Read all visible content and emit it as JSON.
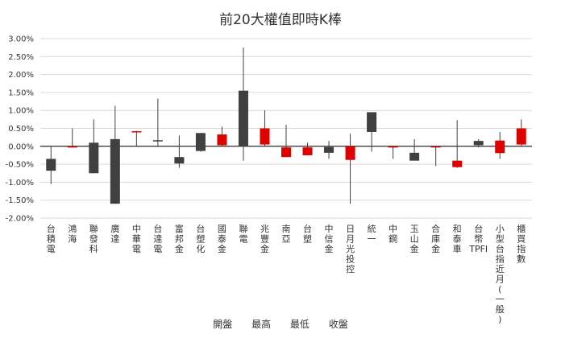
{
  "chart_data": {
    "type": "candlestick",
    "title": "前20大權值即時K棒",
    "ylim": [
      -0.02,
      0.03
    ],
    "yticks": [
      0.03,
      0.025,
      0.02,
      0.015,
      0.01,
      0.005,
      0.0,
      -0.005,
      -0.01,
      -0.015,
      -0.02
    ],
    "ytick_labels": [
      "3.00%",
      "2.50%",
      "2.00%",
      "1.50%",
      "1.00%",
      "0.50%",
      "0.00%",
      "-0.50%",
      "-1.00%",
      "-1.50%",
      "-2.00%"
    ],
    "legend": [
      "開盤",
      "最高",
      "最低",
      "收盤"
    ],
    "categories": [
      "台積電",
      "鴻海",
      "聯發科",
      "廣達",
      "中華電",
      "台達電",
      "富邦金",
      "台塑化",
      "國泰金",
      "聯電",
      "兆豐金",
      "南亞",
      "台塑",
      "中信金",
      "日月光投控",
      "統一",
      "中鋼",
      "玉山金",
      "合庫金",
      "和泰車",
      "台幣TPFI",
      "小型台指近月(一般)",
      "櫃買指數"
    ],
    "series": [
      {
        "name": "開盤",
        "values": [
          -0.0035,
          -0.0003,
          0.001,
          0.002,
          0.004,
          0.0017,
          -0.003,
          0.0037,
          0.0003,
          0.0155,
          0.0005,
          -0.003,
          -0.0025,
          -0.0002,
          -0.0038,
          0.0095,
          -0.0003,
          -0.0018,
          -0.0003,
          -0.0058,
          0.0015,
          -0.0019,
          0.0005
        ]
      },
      {
        "name": "最高",
        "values": [
          0.0,
          0.005,
          0.0075,
          0.0113,
          0.0043,
          0.0133,
          0.003,
          0.0037,
          0.0055,
          0.0275,
          0.01,
          0.006,
          0.001,
          0.0015,
          0.0035,
          0.0095,
          0.0,
          0.002,
          0.0,
          0.0073,
          0.002,
          0.004,
          0.0075
        ]
      },
      {
        "name": "最低",
        "values": [
          -0.0105,
          -0.0003,
          -0.0075,
          -0.016,
          0.0,
          0.0,
          -0.006,
          -0.0015,
          0.0,
          -0.004,
          0.0,
          -0.003,
          -0.0025,
          -0.0035,
          -0.016,
          -0.0015,
          -0.0035,
          -0.0038,
          -0.0055,
          -0.006,
          -0.0003,
          -0.0035,
          0.0
        ]
      },
      {
        "name": "收盤",
        "values": [
          -0.0068,
          0.0,
          -0.0075,
          -0.016,
          0.0042,
          0.0015,
          -0.0048,
          -0.0013,
          0.0033,
          0.0,
          0.005,
          -0.0003,
          -0.0003,
          -0.0018,
          0.0,
          0.004,
          0.0,
          -0.004,
          0.0,
          -0.004,
          0.0003,
          0.0016,
          0.005
        ]
      }
    ],
    "colors": {
      "up": "#e00000",
      "down": "#404040",
      "wick": "#404040",
      "grid": "#d9d9d9",
      "axis": "#000000"
    }
  }
}
